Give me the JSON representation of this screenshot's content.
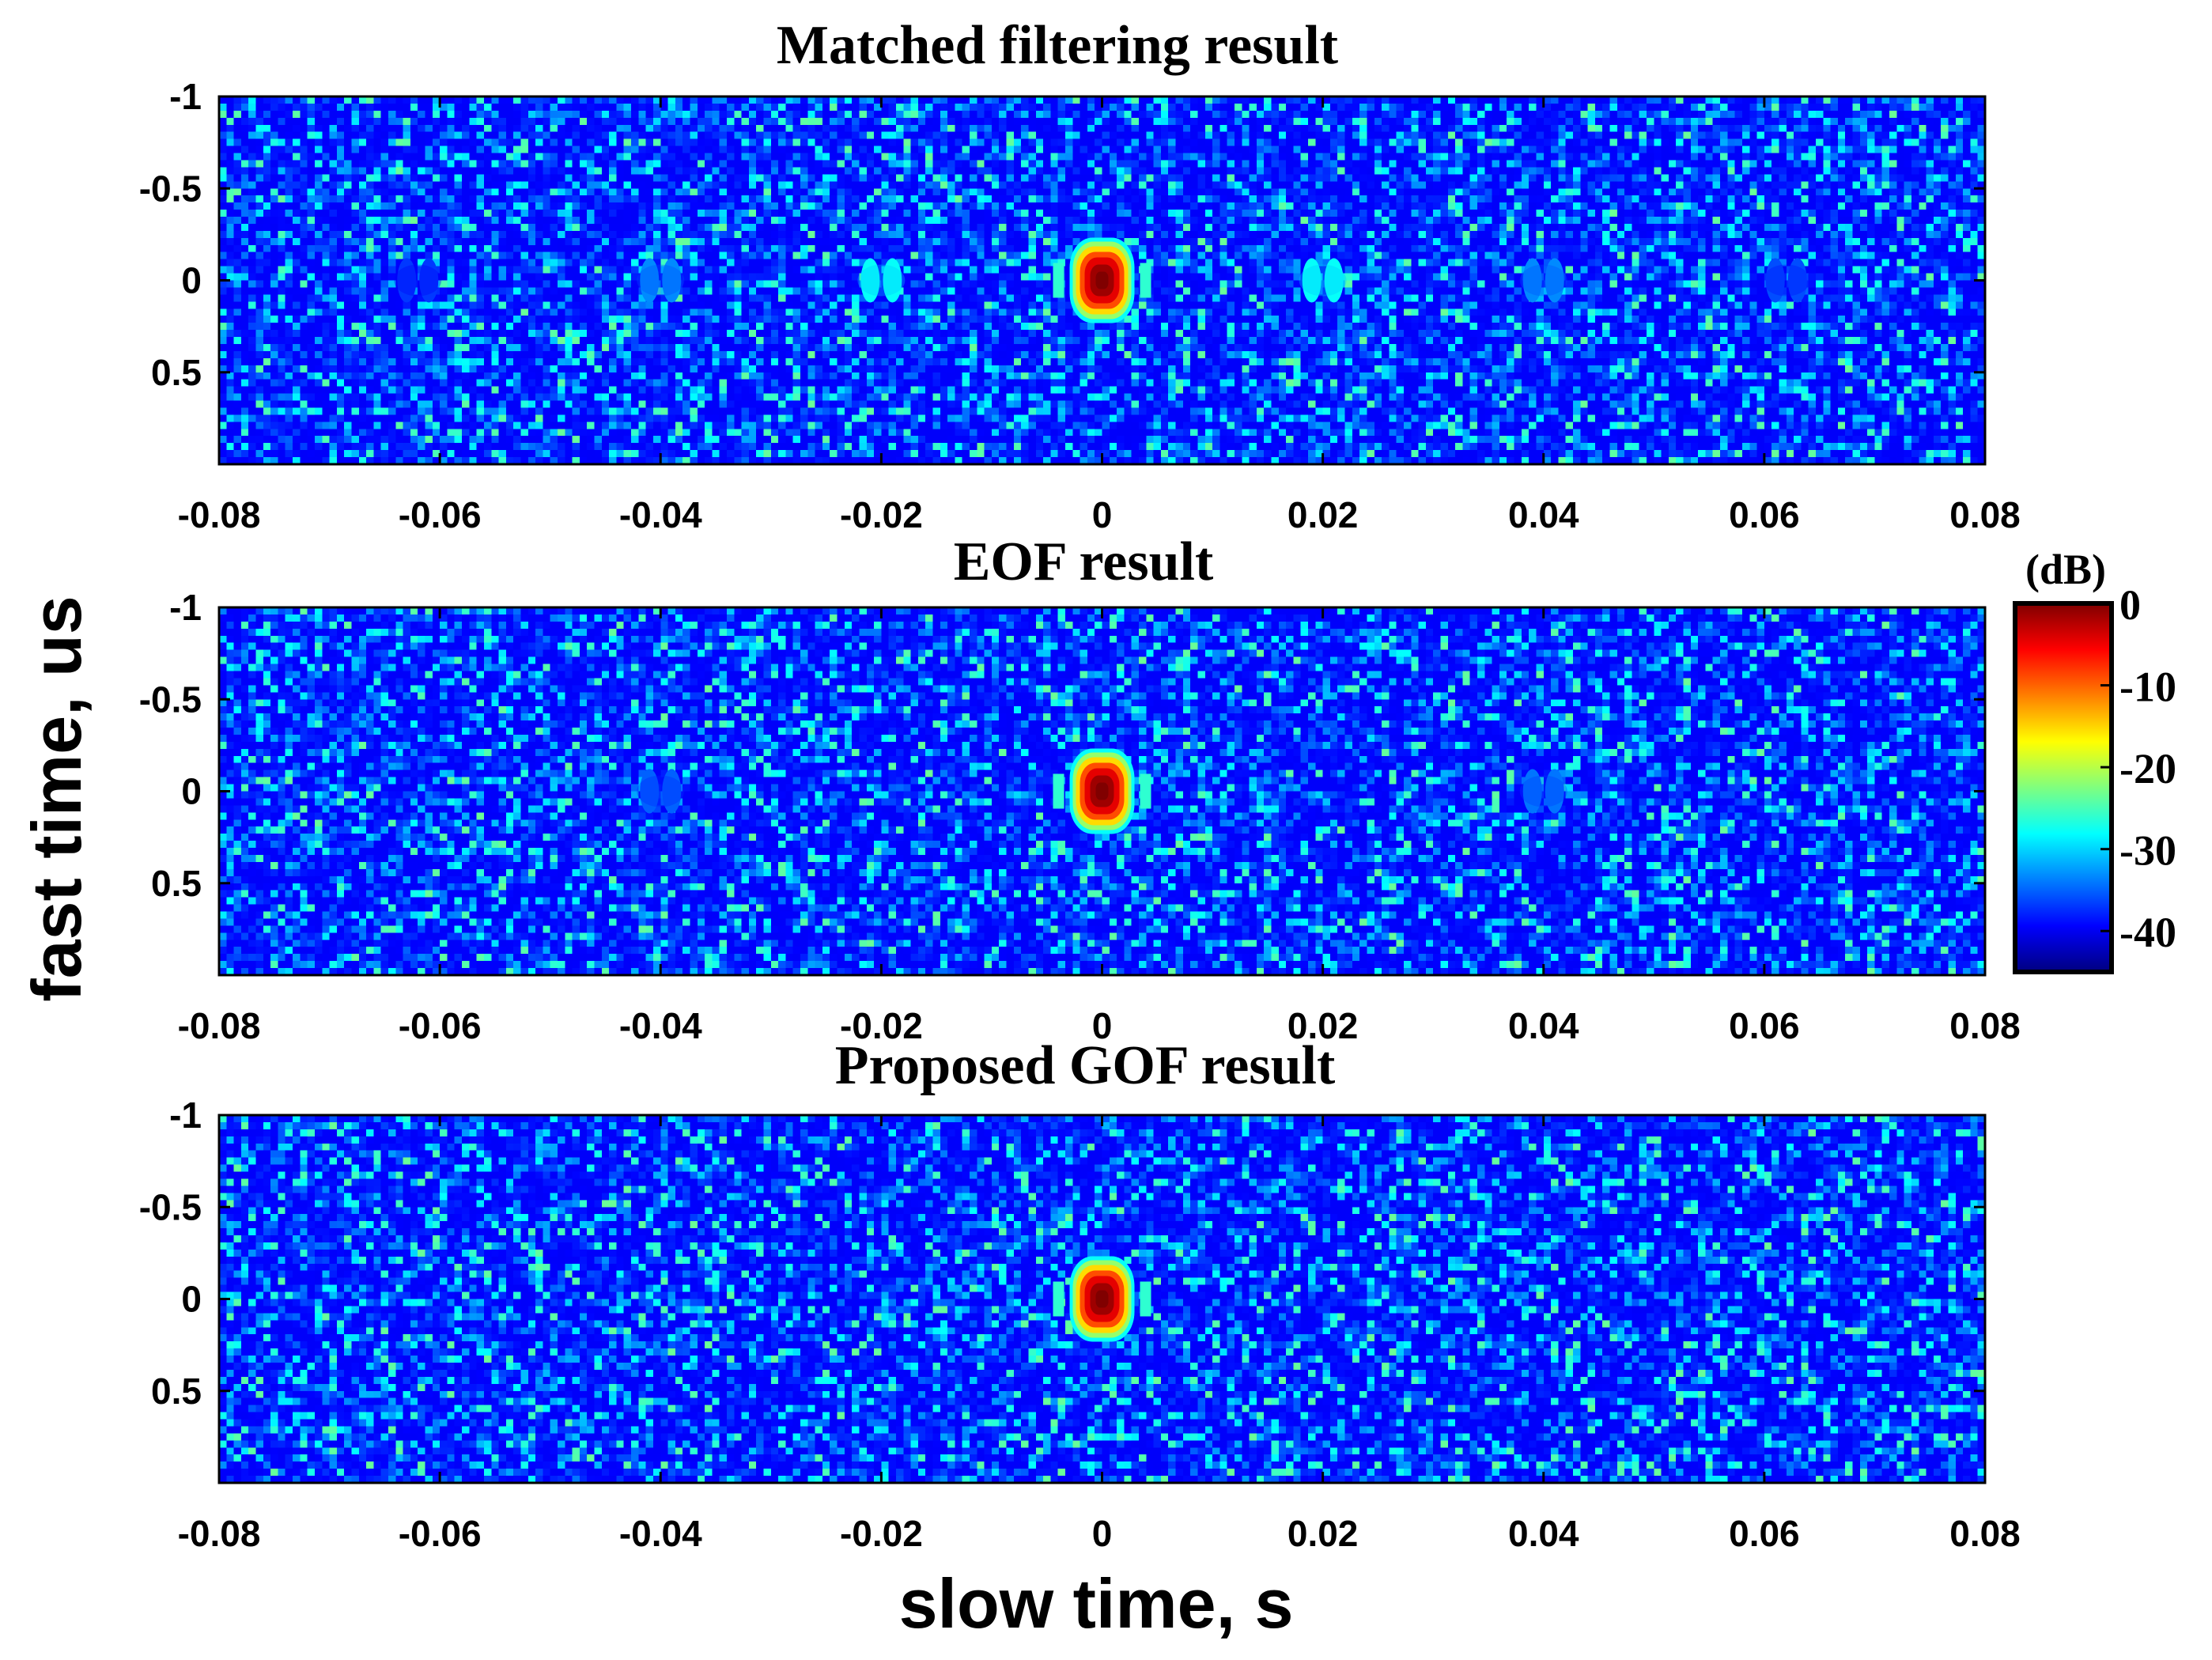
{
  "chart_data": [
    {
      "type": "heatmap",
      "title": "Matched filtering result",
      "x_ticks": [
        -0.08,
        -0.06,
        -0.04,
        -0.02,
        0,
        0.02,
        0.04,
        0.06,
        0.08
      ],
      "x_tick_labels": [
        "-0.08",
        "-0.06",
        "-0.04",
        "-0.02",
        "0",
        "0.02",
        "0.04",
        "0.06",
        "0.08"
      ],
      "y_ticks": [
        -1,
        -0.5,
        0,
        0.5
      ],
      "y_tick_labels": [
        "-1",
        "-0.5",
        "0",
        "0.5"
      ],
      "xlim": [
        -0.08,
        0.08
      ],
      "ylim": [
        -1,
        1
      ],
      "noise_floor_db": -45,
      "peaks": [
        {
          "x": 0,
          "y": 0,
          "db": 0,
          "kind": "main"
        },
        {
          "x": -0.02,
          "y": 0,
          "db": -30,
          "kind": "ghost"
        },
        {
          "x": 0.02,
          "y": 0,
          "db": -30,
          "kind": "ghost"
        },
        {
          "x": -0.04,
          "y": 0,
          "db": -36,
          "kind": "ghost"
        },
        {
          "x": 0.04,
          "y": 0,
          "db": -36,
          "kind": "ghost"
        },
        {
          "x": -0.062,
          "y": 0,
          "db": -40,
          "kind": "ghost"
        },
        {
          "x": 0.062,
          "y": 0,
          "db": -39,
          "kind": "ghost"
        }
      ]
    },
    {
      "type": "heatmap",
      "title": "EOF result",
      "x_ticks": [
        -0.08,
        -0.06,
        -0.04,
        -0.02,
        0,
        0.02,
        0.04,
        0.06,
        0.08
      ],
      "x_tick_labels": [
        "-0.08",
        "-0.06",
        "-0.04",
        "-0.02",
        "0",
        "0.02",
        "0.04",
        "0.06",
        "0.08"
      ],
      "y_ticks": [
        -1,
        -0.5,
        0,
        0.5
      ],
      "y_tick_labels": [
        "-1",
        "-0.5",
        "0",
        "0.5"
      ],
      "xlim": [
        -0.08,
        0.08
      ],
      "ylim": [
        -1,
        1
      ],
      "noise_floor_db": -45,
      "peaks": [
        {
          "x": 0,
          "y": 0,
          "db": 0,
          "kind": "main"
        },
        {
          "x": -0.04,
          "y": 0,
          "db": -38,
          "kind": "ghost"
        },
        {
          "x": 0.04,
          "y": 0,
          "db": -37,
          "kind": "ghost"
        }
      ]
    },
    {
      "type": "heatmap",
      "title": "Proposed GOF result",
      "x_ticks": [
        -0.08,
        -0.06,
        -0.04,
        -0.02,
        0,
        0.02,
        0.04,
        0.06,
        0.08
      ],
      "x_tick_labels": [
        "-0.08",
        "-0.06",
        "-0.04",
        "-0.02",
        "0",
        "0.02",
        "0.04",
        "0.06",
        "0.08"
      ],
      "y_ticks": [
        -1,
        -0.5,
        0,
        0.5
      ],
      "y_tick_labels": [
        "-1",
        "-0.5",
        "0",
        "0.5"
      ],
      "xlim": [
        -0.08,
        0.08
      ],
      "ylim": [
        -1,
        1
      ],
      "noise_floor_db": -45,
      "peaks": [
        {
          "x": 0,
          "y": 0,
          "db": 0,
          "kind": "main"
        }
      ]
    }
  ],
  "shared": {
    "xlabel": "slow time, s",
    "ylabel": "fast  time,  us"
  },
  "colorbar": {
    "unit_label": "(dB)",
    "range": [
      -45,
      0
    ],
    "ticks": [
      0,
      -10,
      -20,
      -30,
      -40
    ],
    "tick_labels": [
      "0",
      "-10",
      "-20",
      "-30",
      "-40"
    ],
    "colormap": "jet",
    "colors": [
      "#00007f",
      "#0000ff",
      "#007fff",
      "#00ffff",
      "#7fff7f",
      "#ffff00",
      "#ff7f00",
      "#ff0000",
      "#7f0000"
    ]
  }
}
